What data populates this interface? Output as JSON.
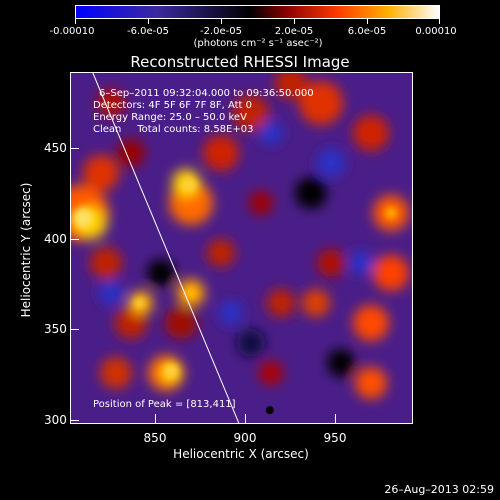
{
  "colorbar": {
    "tick_labels": [
      "-0.00010",
      "-6.0e-05",
      "-2.0e-05",
      "2.0e-05",
      "6.0e-05",
      "0.00010"
    ],
    "units": "(photons cm⁻² s⁻¹ asec⁻²)",
    "range": [
      -0.0001,
      0.0001
    ]
  },
  "chart_data": {
    "type": "heatmap",
    "title": "Reconstructed RHESSI Image",
    "xlabel": "Heliocentric X (arcsec)",
    "ylabel": "Heliocentric Y (arcsec)",
    "x_ticks": [
      850,
      900,
      950
    ],
    "y_ticks": [
      300,
      350,
      400,
      450
    ],
    "xlim": [
      808,
      995
    ],
    "ylim": [
      298,
      489
    ],
    "annotations": {
      "time_range": "6–Sep–2011 09:32:04.000 to 09:36:50.000",
      "detectors": "Detectors: 4F 5F 6F 7F 8F, Att 0",
      "energy": "Energy Range: 25.0 – 50.0 keV",
      "clean": "Clean     Total counts: 8.58E+03",
      "peak": "Position of Peak = [813,411]"
    },
    "peak_position": [
      813,
      411
    ],
    "limb_line": [
      [
        820,
        489
      ],
      [
        900,
        298
      ]
    ],
    "colormap": "blue-black-red-yellow-white"
  },
  "footer": {
    "timestamp": "26–Aug–2013 02:59"
  }
}
